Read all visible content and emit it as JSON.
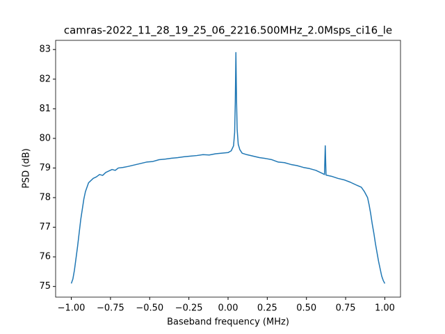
{
  "chart_data": {
    "type": "line",
    "title": "camras-2022_11_28_19_25_06_2216.500MHz_2.0Msps_ci16_le",
    "x_label": "Baseband frequency (MHz)",
    "y_label": "PSD (dB)",
    "x": [
      -1.0,
      -0.99,
      -0.98,
      -0.97,
      -0.96,
      -0.95,
      -0.94,
      -0.93,
      -0.92,
      -0.91,
      -0.9,
      -0.89,
      -0.88,
      -0.86,
      -0.84,
      -0.82,
      -0.8,
      -0.78,
      -0.76,
      -0.74,
      -0.72,
      -0.7,
      -0.67,
      -0.64,
      -0.6,
      -0.56,
      -0.52,
      -0.48,
      -0.44,
      -0.4,
      -0.36,
      -0.32,
      -0.28,
      -0.24,
      -0.2,
      -0.16,
      -0.12,
      -0.08,
      -0.04,
      0.0,
      0.02,
      0.035,
      0.042,
      0.046,
      0.05,
      0.054,
      0.058,
      0.065,
      0.075,
      0.09,
      0.12,
      0.16,
      0.2,
      0.24,
      0.28,
      0.32,
      0.36,
      0.4,
      0.44,
      0.48,
      0.52,
      0.56,
      0.6,
      0.615,
      0.62,
      0.625,
      0.66,
      0.7,
      0.74,
      0.78,
      0.82,
      0.85,
      0.87,
      0.89,
      0.9,
      0.91,
      0.92,
      0.93,
      0.94,
      0.95,
      0.96,
      0.97,
      0.98,
      0.99,
      1.0
    ],
    "series": [
      {
        "name": "PSD",
        "color": "#1f77b4",
        "values": [
          75.1,
          75.25,
          75.55,
          75.95,
          76.35,
          76.8,
          77.25,
          77.6,
          77.95,
          78.2,
          78.35,
          78.5,
          78.55,
          78.65,
          78.7,
          78.78,
          78.75,
          78.85,
          78.9,
          78.95,
          78.92,
          79.0,
          79.02,
          79.05,
          79.1,
          79.15,
          79.2,
          79.22,
          79.28,
          79.3,
          79.33,
          79.35,
          79.38,
          79.4,
          79.42,
          79.45,
          79.44,
          79.48,
          79.5,
          79.52,
          79.58,
          79.75,
          80.2,
          81.2,
          82.9,
          81.3,
          80.3,
          79.8,
          79.62,
          79.5,
          79.45,
          79.4,
          79.35,
          79.32,
          79.28,
          79.2,
          79.18,
          79.12,
          79.08,
          79.02,
          78.98,
          78.92,
          78.82,
          78.78,
          79.75,
          78.76,
          78.72,
          78.65,
          78.6,
          78.52,
          78.42,
          78.35,
          78.2,
          78.0,
          77.75,
          77.45,
          77.1,
          76.8,
          76.45,
          76.15,
          75.85,
          75.6,
          75.35,
          75.2,
          75.1
        ]
      }
    ],
    "xlim": [
      -1.1,
      1.1
    ],
    "ylim": [
      74.64,
      83.31
    ],
    "xticks": [
      {
        "value": -1.0,
        "label": "−1.00"
      },
      {
        "value": -0.75,
        "label": "−0.75"
      },
      {
        "value": -0.5,
        "label": "−0.50"
      },
      {
        "value": -0.25,
        "label": "−0.25"
      },
      {
        "value": 0,
        "label": "0.00"
      },
      {
        "value": 0.25,
        "label": "0.25"
      },
      {
        "value": 0.5,
        "label": "0.50"
      },
      {
        "value": 0.75,
        "label": "0.75"
      },
      {
        "value": 1.0,
        "label": "1.00"
      }
    ],
    "yticks": [
      75,
      76,
      77,
      78,
      79,
      80,
      81,
      82,
      83
    ]
  }
}
